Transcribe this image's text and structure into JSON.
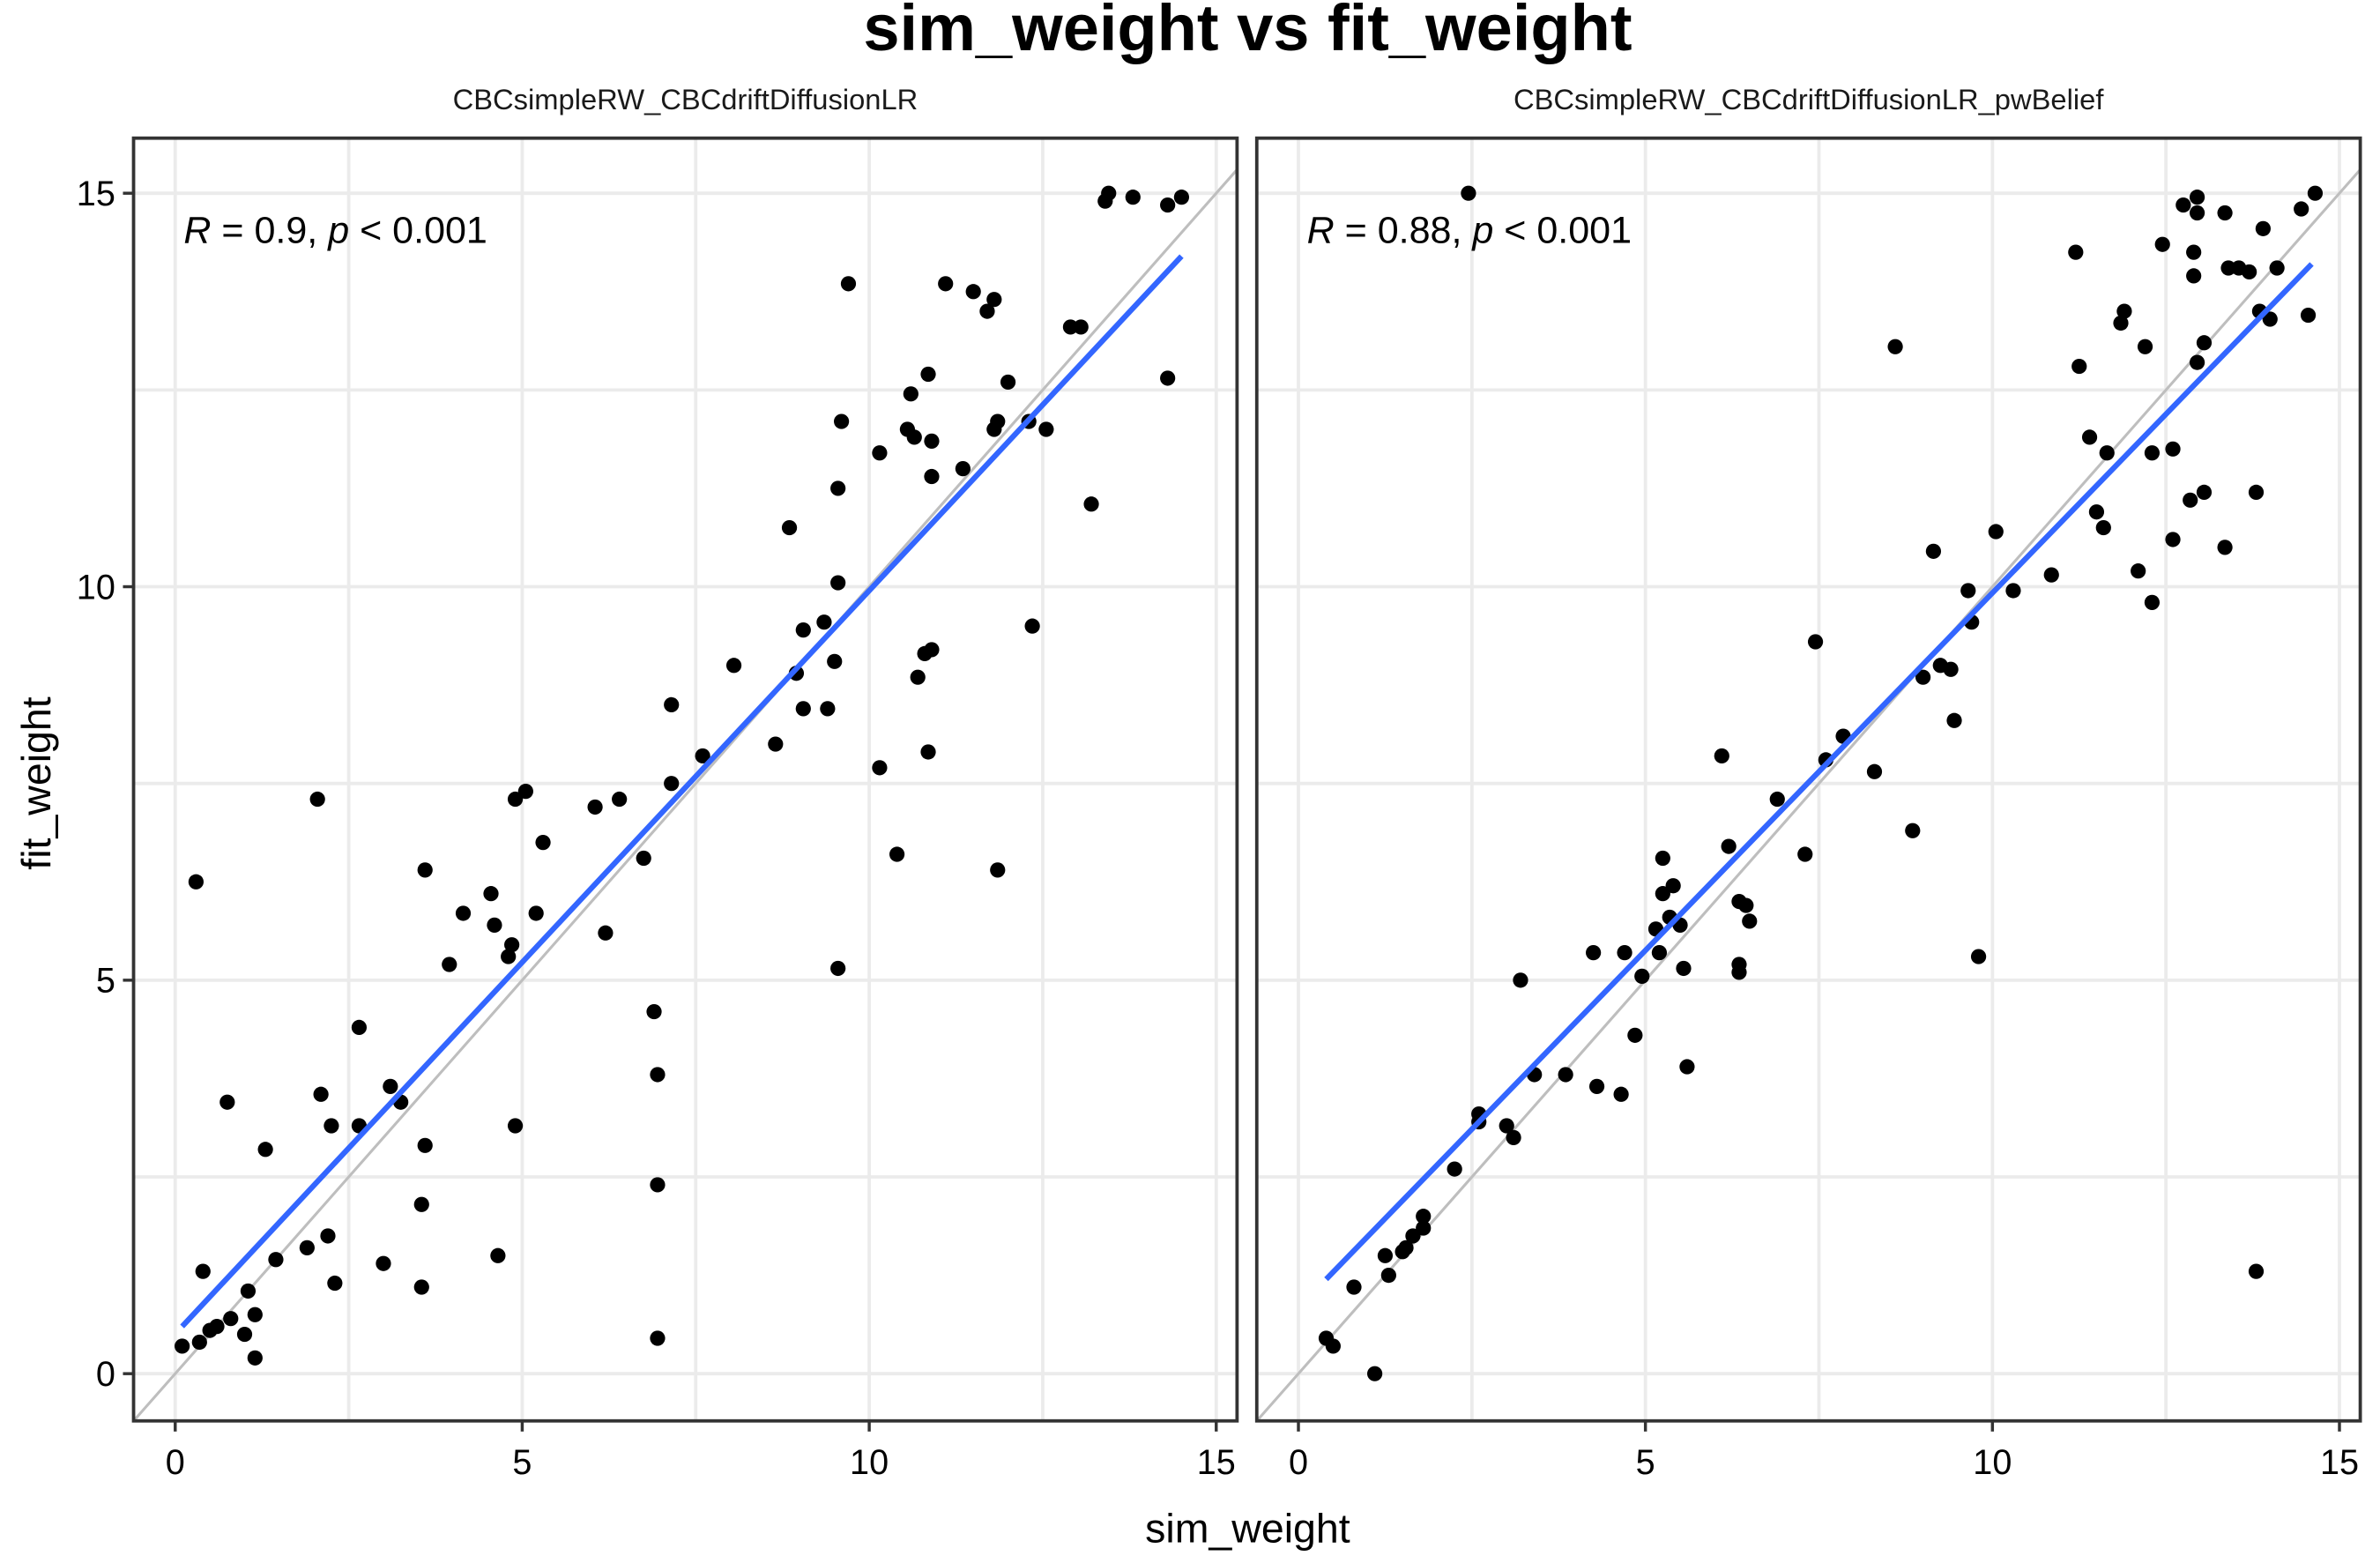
{
  "chart_data": {
    "type": "scatter",
    "title": "sim_weight vs fit_weight",
    "xlabel": "sim_weight",
    "ylabel": "fit_weight",
    "xlim": [
      -0.6,
      15.3
    ],
    "ylim": [
      -0.6,
      15.7
    ],
    "x_ticks": [
      0,
      5,
      10,
      15
    ],
    "y_ticks": [
      0,
      5,
      10,
      15
    ],
    "x_tick_labels": [
      "0",
      "5",
      "10",
      "15"
    ],
    "y_tick_labels": [
      "0",
      "5",
      "10",
      "15"
    ],
    "grid": true,
    "colors": {
      "points": "#000000",
      "fit_line": "#3366ff",
      "identity_line": "#bebebe"
    },
    "panels": [
      {
        "facet_label": "CBCsimpleRW_CBCdriftDiffusionLR",
        "stat_r": "0.9",
        "stat_p": "< 0.001",
        "fit_line": {
          "x0": 0.1,
          "y0": 0.6,
          "x1": 14.5,
          "y1": 14.2
        },
        "points": [
          [
            0.1,
            0.35
          ],
          [
            0.3,
            6.25
          ],
          [
            0.35,
            0.4
          ],
          [
            0.4,
            1.3
          ],
          [
            0.5,
            0.55
          ],
          [
            0.6,
            0.6
          ],
          [
            0.75,
            3.45
          ],
          [
            0.8,
            0.7
          ],
          [
            1.0,
            0.5
          ],
          [
            1.05,
            1.05
          ],
          [
            1.15,
            0.2
          ],
          [
            1.15,
            0.75
          ],
          [
            1.3,
            2.85
          ],
          [
            1.45,
            1.45
          ],
          [
            1.9,
            1.6
          ],
          [
            2.05,
            7.3
          ],
          [
            2.1,
            3.55
          ],
          [
            2.2,
            1.75
          ],
          [
            2.25,
            3.15
          ],
          [
            2.3,
            1.15
          ],
          [
            2.65,
            3.15
          ],
          [
            2.65,
            4.4
          ],
          [
            3.0,
            1.4
          ],
          [
            3.1,
            3.65
          ],
          [
            3.25,
            3.45
          ],
          [
            3.55,
            2.15
          ],
          [
            3.55,
            1.1
          ],
          [
            3.6,
            2.9
          ],
          [
            3.6,
            6.4
          ],
          [
            3.95,
            5.2
          ],
          [
            4.15,
            5.85
          ],
          [
            4.55,
            6.1
          ],
          [
            4.6,
            5.7
          ],
          [
            4.65,
            1.5
          ],
          [
            4.8,
            5.3
          ],
          [
            4.85,
            5.45
          ],
          [
            4.9,
            3.15
          ],
          [
            4.9,
            7.3
          ],
          [
            5.05,
            7.4
          ],
          [
            5.2,
            5.85
          ],
          [
            5.3,
            6.75
          ],
          [
            6.05,
            7.2
          ],
          [
            6.2,
            5.6
          ],
          [
            6.4,
            7.3
          ],
          [
            6.75,
            6.55
          ],
          [
            6.9,
            4.6
          ],
          [
            6.95,
            3.8
          ],
          [
            6.95,
            2.4
          ],
          [
            6.95,
            0.45
          ],
          [
            7.15,
            8.5
          ],
          [
            7.15,
            7.5
          ],
          [
            7.6,
            7.85
          ],
          [
            8.05,
            9.0
          ],
          [
            8.65,
            8.0
          ],
          [
            8.85,
            10.75
          ],
          [
            8.95,
            8.9
          ],
          [
            9.05,
            8.45
          ],
          [
            9.05,
            9.45
          ],
          [
            9.35,
            9.55
          ],
          [
            9.4,
            8.45
          ],
          [
            9.5,
            9.05
          ],
          [
            9.55,
            5.15
          ],
          [
            9.55,
            11.25
          ],
          [
            9.55,
            10.05
          ],
          [
            9.6,
            12.1
          ],
          [
            9.7,
            13.85
          ],
          [
            10.15,
            7.7
          ],
          [
            10.15,
            11.7
          ],
          [
            10.4,
            6.6
          ],
          [
            10.55,
            12.0
          ],
          [
            10.6,
            12.45
          ],
          [
            10.65,
            11.9
          ],
          [
            10.7,
            8.85
          ],
          [
            10.8,
            9.15
          ],
          [
            10.85,
            12.7
          ],
          [
            10.85,
            7.9
          ],
          [
            10.9,
            9.2
          ],
          [
            10.9,
            11.4
          ],
          [
            10.9,
            11.85
          ],
          [
            11.1,
            13.85
          ],
          [
            11.35,
            11.5
          ],
          [
            11.5,
            13.75
          ],
          [
            11.7,
            13.5
          ],
          [
            11.8,
            13.65
          ],
          [
            11.8,
            12.0
          ],
          [
            11.85,
            6.4
          ],
          [
            11.85,
            12.1
          ],
          [
            12.0,
            12.6
          ],
          [
            12.3,
            12.1
          ],
          [
            12.35,
            9.5
          ],
          [
            12.55,
            12.0
          ],
          [
            12.9,
            13.3
          ],
          [
            13.05,
            13.3
          ],
          [
            13.2,
            11.05
          ],
          [
            13.4,
            14.9
          ],
          [
            13.45,
            15.0
          ],
          [
            13.8,
            14.95
          ],
          [
            14.3,
            14.85
          ],
          [
            14.3,
            12.65
          ],
          [
            14.5,
            14.95
          ]
        ]
      },
      {
        "facet_label": "CBCsimpleRW_CBCdriftDiffusionLR_pwBelief",
        "stat_r": "0.88",
        "stat_p": "< 0.001",
        "fit_line": {
          "x0": 0.4,
          "y0": 1.2,
          "x1": 14.6,
          "y1": 14.1
        },
        "points": [
          [
            0.4,
            0.45
          ],
          [
            0.5,
            0.35
          ],
          [
            0.8,
            1.1
          ],
          [
            1.1,
            0.0
          ],
          [
            1.25,
            1.5
          ],
          [
            1.3,
            1.25
          ],
          [
            1.5,
            1.55
          ],
          [
            1.55,
            1.6
          ],
          [
            1.65,
            1.75
          ],
          [
            1.8,
            1.85
          ],
          [
            1.8,
            2.0
          ],
          [
            2.25,
            2.6
          ],
          [
            2.45,
            15.0
          ],
          [
            2.6,
            3.2
          ],
          [
            2.6,
            3.3
          ],
          [
            3.0,
            3.15
          ],
          [
            3.1,
            3.0
          ],
          [
            3.2,
            5.0
          ],
          [
            3.4,
            3.8
          ],
          [
            3.85,
            3.8
          ],
          [
            4.25,
            5.35
          ],
          [
            4.3,
            3.65
          ],
          [
            4.65,
            3.55
          ],
          [
            4.7,
            5.35
          ],
          [
            4.85,
            4.3
          ],
          [
            4.95,
            5.05
          ],
          [
            5.15,
            5.65
          ],
          [
            5.2,
            5.35
          ],
          [
            5.25,
            6.1
          ],
          [
            5.25,
            6.55
          ],
          [
            5.35,
            5.8
          ],
          [
            5.4,
            6.2
          ],
          [
            5.5,
            5.7
          ],
          [
            5.55,
            5.15
          ],
          [
            5.6,
            3.9
          ],
          [
            6.1,
            7.85
          ],
          [
            6.2,
            6.7
          ],
          [
            6.35,
            6.0
          ],
          [
            6.35,
            5.2
          ],
          [
            6.35,
            5.1
          ],
          [
            6.45,
            5.95
          ],
          [
            6.5,
            5.75
          ],
          [
            6.9,
            7.3
          ],
          [
            7.3,
            6.6
          ],
          [
            7.45,
            9.3
          ],
          [
            7.6,
            7.8
          ],
          [
            7.85,
            8.1
          ],
          [
            8.3,
            7.65
          ],
          [
            8.6,
            13.05
          ],
          [
            8.85,
            6.9
          ],
          [
            9.0,
            8.85
          ],
          [
            9.15,
            10.45
          ],
          [
            9.25,
            9.0
          ],
          [
            9.4,
            8.95
          ],
          [
            9.45,
            8.3
          ],
          [
            9.65,
            9.95
          ],
          [
            9.7,
            9.55
          ],
          [
            9.8,
            5.3
          ],
          [
            10.05,
            10.7
          ],
          [
            10.3,
            9.95
          ],
          [
            10.85,
            10.15
          ],
          [
            11.2,
            14.25
          ],
          [
            11.25,
            12.8
          ],
          [
            11.4,
            11.9
          ],
          [
            11.5,
            10.95
          ],
          [
            11.6,
            10.75
          ],
          [
            11.65,
            11.7
          ],
          [
            11.85,
            13.35
          ],
          [
            11.9,
            13.5
          ],
          [
            12.1,
            10.2
          ],
          [
            12.2,
            13.05
          ],
          [
            12.3,
            11.7
          ],
          [
            12.3,
            9.8
          ],
          [
            12.45,
            14.35
          ],
          [
            12.6,
            11.75
          ],
          [
            12.6,
            10.6
          ],
          [
            12.75,
            14.85
          ],
          [
            12.85,
            11.1
          ],
          [
            12.9,
            14.25
          ],
          [
            12.9,
            13.95
          ],
          [
            12.95,
            14.95
          ],
          [
            12.95,
            12.85
          ],
          [
            12.95,
            14.75
          ],
          [
            13.05,
            13.1
          ],
          [
            13.05,
            11.2
          ],
          [
            13.35,
            14.75
          ],
          [
            13.35,
            10.5
          ],
          [
            13.4,
            14.05
          ],
          [
            13.55,
            14.05
          ],
          [
            13.7,
            14.0
          ],
          [
            13.8,
            11.2
          ],
          [
            13.8,
            1.3
          ],
          [
            13.85,
            13.5
          ],
          [
            13.9,
            14.55
          ],
          [
            14.0,
            13.4
          ],
          [
            14.1,
            14.05
          ],
          [
            14.45,
            14.8
          ],
          [
            14.55,
            13.45
          ],
          [
            14.65,
            15.0
          ]
        ]
      }
    ]
  }
}
